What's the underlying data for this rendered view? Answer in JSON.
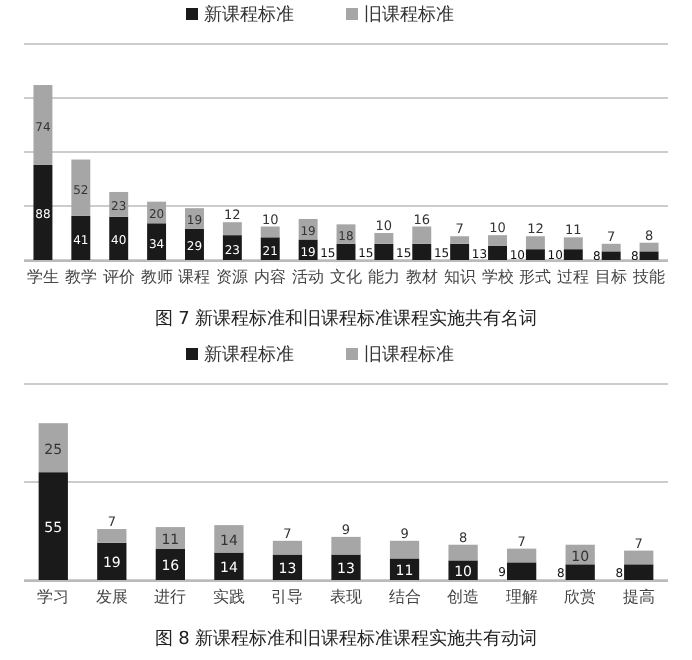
{
  "chart_data": [
    {
      "type": "bar",
      "stacked": true,
      "data_labels": true,
      "legend": "top",
      "grid": "y",
      "tick_labels": "x",
      "annotations": [
        "图 7  新课程标准和旧课程标准课程实施共有名词"
      ],
      "categories": [
        "学生",
        "教学",
        "评价",
        "教师",
        "课程",
        "资源",
        "内容",
        "活动",
        "文化",
        "能力",
        "教材",
        "知识",
        "学校",
        "形式",
        "过程",
        "目标",
        "技能"
      ],
      "ylim": [
        0,
        200
      ],
      "yticks": [
        {
          "value": 0,
          "label": null
        },
        {
          "value": 50,
          "label": null
        },
        {
          "value": 100,
          "label": null
        },
        {
          "value": 150,
          "label": null
        },
        {
          "value": 200,
          "label": null
        }
      ],
      "series": [
        {
          "name": "新课程标准",
          "color": "#1a1a1a",
          "values": [
            88,
            41,
            40,
            34,
            29,
            23,
            21,
            19,
            15,
            15,
            15,
            15,
            13,
            10,
            10,
            8,
            8
          ]
        },
        {
          "name": "旧课程标准",
          "color": "#a6a6a6",
          "values": [
            74,
            52,
            23,
            20,
            19,
            12,
            10,
            19,
            18,
            10,
            16,
            7,
            10,
            12,
            11,
            7,
            8
          ]
        }
      ]
    },
    {
      "type": "bar",
      "stacked": true,
      "data_labels": true,
      "legend": "top",
      "grid": "y",
      "tick_labels": "x",
      "annotations": [
        "图 8  新课程标准和旧课程标准课程实施共有动词"
      ],
      "categories": [
        "学习",
        "发展",
        "进行",
        "实践",
        "引导",
        "表现",
        "结合",
        "创造",
        "理解",
        "欣赏",
        "提高"
      ],
      "ylim": [
        0,
        100
      ],
      "yticks": [
        {
          "value": 0,
          "label": null
        },
        {
          "value": 50,
          "label": null
        },
        {
          "value": 100,
          "label": null
        }
      ],
      "series": [
        {
          "name": "新课程标准",
          "color": "#1a1a1a",
          "values": [
            55,
            19,
            16,
            14,
            13,
            13,
            11,
            10,
            9,
            8,
            8
          ]
        },
        {
          "name": "旧课程标准",
          "color": "#a6a6a6",
          "values": [
            25,
            7,
            11,
            14,
            7,
            9,
            9,
            8,
            7,
            10,
            7
          ]
        }
      ]
    }
  ]
}
